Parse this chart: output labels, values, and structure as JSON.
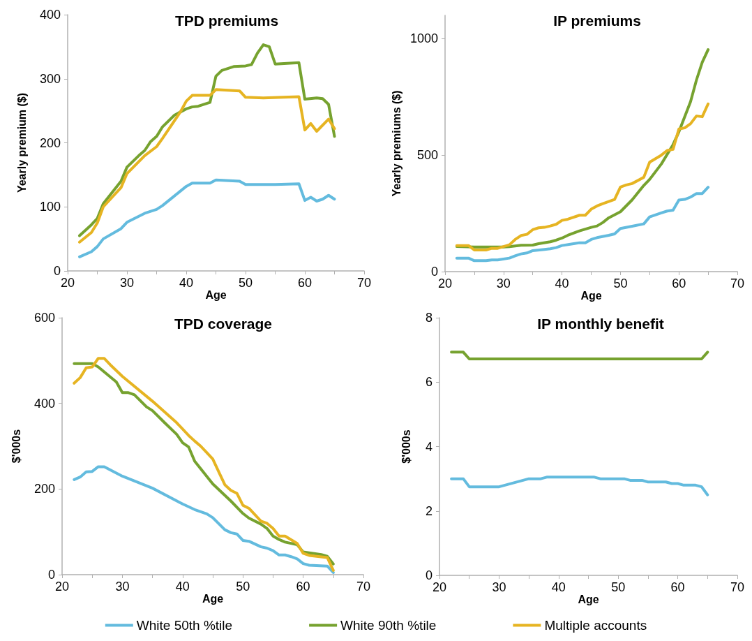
{
  "chart_data": [
    {
      "type": "line",
      "title": "TPD premiums",
      "xlabel": "Age",
      "ylabel": "Yearly premium ($)",
      "xlim": [
        20,
        70
      ],
      "xticks": [
        20,
        {
          "value": 25,
          "label": null
        },
        30,
        {
          "value": 35,
          "label": null
        },
        40,
        {
          "value": 45,
          "label": null
        },
        50,
        {
          "value": 55,
          "label": null
        },
        60,
        {
          "value": 65,
          "label": null
        },
        70
      ],
      "ylim": [
        0,
        400
      ],
      "yticks": [
        0,
        100,
        200,
        300,
        400
      ],
      "grid": false,
      "marker": "none",
      "legend": "bottom",
      "series": [
        {
          "name": "White 50th %tile",
          "color": "#63bbde",
          "x": [
            22,
            24,
            25,
            26,
            29,
            30,
            33,
            35,
            36,
            38,
            40,
            41,
            44,
            45,
            49,
            50,
            55,
            59,
            60,
            61,
            62,
            63,
            64,
            65
          ],
          "values": [
            22,
            30,
            38,
            50,
            66,
            76,
            90,
            96,
            102,
            117,
            132,
            137,
            137,
            142,
            140,
            135,
            135,
            136,
            110,
            115,
            109,
            112,
            118,
            112
          ]
        },
        {
          "name": "White 90th %tile",
          "color": "#76a22f",
          "x": [
            22,
            24,
            25,
            26,
            29,
            30,
            32,
            33,
            34,
            35,
            36,
            38,
            40,
            41,
            42,
            44,
            45,
            46,
            48,
            50,
            51,
            52,
            53,
            54,
            55,
            59,
            60,
            62,
            63,
            64,
            65
          ],
          "values": [
            55,
            72,
            82,
            105,
            140,
            162,
            180,
            188,
            202,
            210,
            225,
            243,
            253,
            256,
            257,
            263,
            304,
            313,
            319,
            320,
            322,
            340,
            353,
            350,
            323,
            325,
            268,
            270,
            269,
            260,
            210
          ]
        },
        {
          "name": "Multiple accounts",
          "color": "#e6b422",
          "x": [
            22,
            24,
            25,
            26,
            29,
            30,
            33,
            35,
            36,
            39,
            40,
            41,
            44,
            45,
            49,
            50,
            53,
            59,
            60,
            61,
            62,
            64,
            65
          ],
          "values": [
            45,
            60,
            75,
            100,
            130,
            152,
            180,
            194,
            207,
            248,
            265,
            274,
            274,
            283,
            281,
            271,
            270,
            272,
            220,
            230,
            218,
            237,
            222
          ]
        }
      ]
    },
    {
      "type": "line",
      "title": "IP premiums",
      "xlabel": "Age",
      "ylabel": "Yearly premiums ($)",
      "xlim": [
        20,
        70
      ],
      "xticks": [
        20,
        {
          "value": 25,
          "label": null
        },
        30,
        {
          "value": 35,
          "label": null
        },
        40,
        {
          "value": 45,
          "label": null
        },
        50,
        {
          "value": 55,
          "label": null
        },
        60,
        {
          "value": 65,
          "label": null
        },
        70
      ],
      "ylim": [
        0,
        1100
      ],
      "yticks": [
        0,
        500,
        1000
      ],
      "grid": false,
      "marker": "none",
      "legend": "bottom",
      "series": [
        {
          "name": "White 50th %tile",
          "color": "#63bbde",
          "x": [
            22,
            24,
            25,
            27,
            28,
            29,
            31,
            32,
            33,
            34,
            35,
            37,
            38,
            39,
            40,
            42,
            43,
            44,
            45,
            46,
            48,
            49,
            50,
            52,
            54,
            55,
            57,
            58,
            59,
            60,
            61,
            62,
            63,
            64,
            65
          ],
          "values": [
            58,
            58,
            47,
            47,
            50,
            50,
            58,
            68,
            76,
            80,
            90,
            95,
            98,
            103,
            112,
            120,
            124,
            124,
            138,
            146,
            156,
            162,
            185,
            195,
            205,
            235,
            252,
            260,
            264,
            307,
            310,
            320,
            335,
            335,
            362
          ]
        },
        {
          "name": "White 90th %tile",
          "color": "#76a22f",
          "x": [
            22,
            25,
            30,
            31,
            33,
            35,
            36,
            38,
            39,
            40,
            41,
            43,
            45,
            46,
            47,
            48,
            50,
            52,
            54,
            55,
            57,
            59,
            60,
            62,
            63,
            64,
            65
          ],
          "values": [
            108,
            106,
            106,
            107,
            113,
            114,
            120,
            128,
            135,
            144,
            156,
            175,
            190,
            196,
            211,
            231,
            257,
            308,
            370,
            396,
            462,
            545,
            600,
            730,
            822,
            899,
            953
          ]
        },
        {
          "name": "Multiple accounts",
          "color": "#e6b422",
          "x": [
            22,
            24,
            25,
            27,
            28,
            29,
            31,
            32,
            33,
            34,
            35,
            36,
            37,
            38,
            39,
            40,
            41,
            43,
            44,
            45,
            46,
            47,
            49,
            50,
            51,
            52,
            54,
            55,
            57,
            58,
            59,
            60,
            61,
            62,
            63,
            64,
            65
          ],
          "values": [
            112,
            112,
            93,
            93,
            100,
            100,
            115,
            138,
            155,
            160,
            180,
            188,
            190,
            196,
            203,
            220,
            225,
            242,
            242,
            268,
            282,
            292,
            310,
            363,
            372,
            378,
            405,
            470,
            500,
            520,
            525,
            612,
            617,
            635,
            668,
            665,
            720
          ]
        }
      ]
    },
    {
      "type": "line",
      "title": "TPD coverage",
      "xlabel": "Age",
      "ylabel": "$'000s",
      "xlim": [
        20,
        70
      ],
      "xticks": [
        20,
        {
          "value": 25,
          "label": null
        },
        30,
        {
          "value": 35,
          "label": null
        },
        40,
        {
          "value": 45,
          "label": null
        },
        50,
        {
          "value": 55,
          "label": null
        },
        60,
        {
          "value": 65,
          "label": null
        },
        70
      ],
      "ylim": [
        0,
        600
      ],
      "yticks": [
        0,
        200,
        400,
        600
      ],
      "grid": false,
      "marker": "none",
      "legend": "bottom",
      "series": [
        {
          "name": "White 50th %tile",
          "color": "#63bbde",
          "x": [
            22,
            23,
            24,
            25,
            26,
            27,
            30,
            35,
            40,
            42,
            44,
            45,
            47,
            48,
            49,
            50,
            51,
            53,
            54,
            55,
            56,
            57,
            58,
            59,
            60,
            61,
            64,
            65
          ],
          "values": [
            222,
            228,
            240,
            241,
            252,
            252,
            230,
            202,
            165,
            152,
            142,
            133,
            105,
            98,
            95,
            80,
            78,
            65,
            62,
            56,
            46,
            46,
            42,
            37,
            26,
            22,
            20,
            5
          ]
        },
        {
          "name": "White 90th %tile",
          "color": "#76a22f",
          "x": [
            22,
            25,
            26,
            29,
            30,
            31,
            32,
            34,
            35,
            37,
            39,
            40,
            41,
            42,
            45,
            48,
            50,
            51,
            53,
            54,
            55,
            56,
            57,
            59,
            60,
            63,
            64,
            65
          ],
          "values": [
            493,
            493,
            485,
            450,
            425,
            425,
            420,
            392,
            383,
            355,
            328,
            308,
            298,
            265,
            212,
            172,
            143,
            132,
            118,
            108,
            90,
            82,
            76,
            70,
            53,
            47,
            43,
            25
          ]
        },
        {
          "name": "Multiple accounts",
          "color": "#e6b422",
          "x": [
            22,
            23,
            24,
            25,
            26,
            27,
            28,
            30,
            35,
            39,
            41,
            42,
            43,
            44,
            45,
            46,
            47,
            48,
            49,
            50,
            51,
            53,
            54,
            55,
            56,
            57,
            59,
            60,
            61,
            64,
            65
          ],
          "values": [
            447,
            460,
            483,
            485,
            505,
            505,
            490,
            463,
            405,
            355,
            325,
            312,
            300,
            285,
            270,
            240,
            210,
            197,
            190,
            162,
            155,
            125,
            120,
            108,
            90,
            90,
            73,
            50,
            45,
            40,
            10
          ]
        }
      ]
    },
    {
      "type": "line",
      "title": "IP monthly benefit",
      "xlabel": "Age",
      "ylabel": "$'000s",
      "xlim": [
        20,
        70
      ],
      "xticks": [
        20,
        {
          "value": 25,
          "label": null
        },
        30,
        {
          "value": 35,
          "label": null
        },
        40,
        {
          "value": 45,
          "label": null
        },
        50,
        {
          "value": 55,
          "label": null
        },
        60,
        {
          "value": 65,
          "label": null
        },
        70
      ],
      "ylim": [
        0,
        8
      ],
      "yticks": [
        0,
        2,
        4,
        6,
        8
      ],
      "grid": false,
      "marker": "none",
      "legend": "bottom",
      "series": [
        {
          "name": "White 50th %tile",
          "color": "#63bbde",
          "x": [
            22,
            24,
            25,
            30,
            35,
            37,
            38,
            46,
            47,
            51,
            52,
            54,
            55,
            58,
            59,
            60,
            61,
            63,
            64,
            65
          ],
          "values": [
            3.0,
            3.0,
            2.75,
            2.75,
            3.0,
            3.0,
            3.05,
            3.05,
            3.0,
            3.0,
            2.95,
            2.95,
            2.9,
            2.9,
            2.85,
            2.85,
            2.8,
            2.8,
            2.75,
            2.5
          ]
        },
        {
          "name": "White 90th %tile",
          "color": "#76a22f",
          "x": [
            22,
            24,
            25,
            64,
            65
          ],
          "values": [
            6.93,
            6.93,
            6.72,
            6.72,
            6.93
          ]
        }
      ]
    }
  ]
}
